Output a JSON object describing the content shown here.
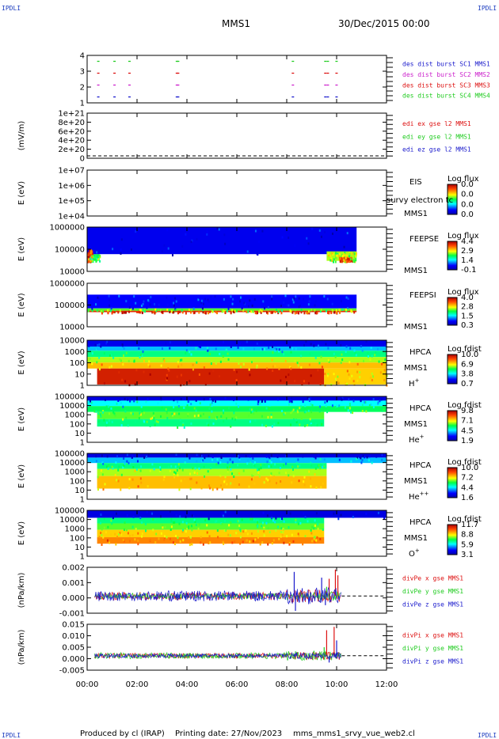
{
  "page": {
    "corner_tag": "IPDLI",
    "spacecraft": "MMS1",
    "date_time": "30/Dec/2015 00:00",
    "footer": {
      "produced_by": "Produced by cl (IRAP)",
      "printing_date": "Printing date: 27/Nov/2023",
      "filename": "mms_mms1_srvy_vue_web2.cl"
    },
    "overlap_text": "survy electron tc"
  },
  "colors": {
    "mms1": "#1a1acc",
    "mms2": "#cc22cc",
    "mms3": "#dd1111",
    "mms4": "#22cc22",
    "x": "#dd1111",
    "y": "#22cc22",
    "z": "#1a1acc"
  },
  "chart_data": [
    {
      "type": "scatter",
      "name": "burst",
      "ylim": [
        0.5,
        4.5
      ],
      "yticks": [
        "4",
        "3",
        "2",
        "1"
      ],
      "legend": [
        {
          "text": "des dist burst SC1 MMS1",
          "color": "#1a1acc"
        },
        {
          "text": "des dist burst SC2 MMS2",
          "color": "#cc22cc"
        },
        {
          "text": "des dist burst SC3 MMS3",
          "color": "#dd1111"
        },
        {
          "text": "des dist burst SC4 MMS4",
          "color": "#22cc22"
        }
      ],
      "series": [
        {
          "sc": 4,
          "color": "#22cc22",
          "x": [
            0.4,
            1.05,
            1.65,
            3.55,
            3.6,
            8.2,
            9.5,
            9.6,
            9.95
          ]
        },
        {
          "sc": 3,
          "color": "#dd1111",
          "x": [
            0.4,
            1.05,
            1.65,
            3.55,
            3.6,
            8.2,
            9.5,
            9.6,
            9.95
          ]
        },
        {
          "sc": 2,
          "color": "#cc22cc",
          "x": [
            0.4,
            1.05,
            1.65,
            3.55,
            3.6,
            8.2,
            9.5,
            9.6,
            9.95
          ]
        },
        {
          "sc": 1,
          "color": "#1a1acc",
          "x": [
            0.4,
            1.05,
            1.65,
            3.55,
            3.6,
            8.2,
            9.5,
            9.6,
            9.95
          ]
        }
      ]
    },
    {
      "type": "line",
      "name": "edi",
      "ylabel": "(mV/m)",
      "ylim": [
        0,
        1e+21
      ],
      "yticks": [
        "1e+21",
        "8e+20",
        "6e+20",
        "4e+20",
        "2e+20",
        "0"
      ],
      "legend": [
        {
          "text": "edi ex gse l2 MMS1",
          "color": "#dd1111"
        },
        {
          "text": "edi ey gse l2 MMS1",
          "color": "#22cc22"
        },
        {
          "text": "edi ez gse l2 MMS1",
          "color": "#1a1acc"
        }
      ],
      "series": [
        {
          "name": "edi ex gse l2 MMS1",
          "values": []
        },
        {
          "name": "edi ey gse l2 MMS1",
          "values": []
        },
        {
          "name": "edi ez gse l2 MMS1",
          "values": []
        }
      ]
    },
    {
      "type": "heatmap",
      "name": "eis",
      "ylabel": "E (eV)",
      "scale": "log",
      "ylim": [
        10000,
        10000000
      ],
      "yticks": [
        "1e+07",
        "1e+06",
        "1e+05",
        "1e+04"
      ],
      "instrument": "EIS",
      "sc_label": "MMS1",
      "colorbar": {
        "title": "Log flux",
        "labels": [
          "0.0",
          "0.0",
          "0.0",
          "0.0"
        ]
      },
      "bands": []
    },
    {
      "type": "heatmap",
      "name": "feeps-e",
      "ylabel": "E (eV)",
      "scale": "log",
      "ylim": [
        10000,
        1000000
      ],
      "yticks": [
        "1000000",
        "100000",
        "10000"
      ],
      "instrument": "FEEPSE",
      "sc_label": "MMS1",
      "colorbar": {
        "title": "Log flux",
        "labels": [
          "4.4",
          "2.9",
          "1.4",
          "-0.1"
        ]
      },
      "bands": [
        {
          "x": [
            0.0,
            0.2
          ],
          "e": [
            30000,
            100000
          ],
          "level": 0.85
        },
        {
          "x": [
            0.0,
            0.5
          ],
          "e": [
            30000,
            60000
          ],
          "level": 0.5
        },
        {
          "x": [
            0.0,
            10.8
          ],
          "e": [
            60000,
            1000000
          ],
          "level": 0.12
        },
        {
          "x": [
            9.6,
            10.8
          ],
          "e": [
            30000,
            80000
          ],
          "level": 0.6
        },
        {
          "x": [
            10.1,
            10.6
          ],
          "e": [
            30000,
            45000
          ],
          "level": 0.85
        }
      ]
    },
    {
      "type": "heatmap",
      "name": "feeps-i",
      "ylabel": "E (eV)",
      "scale": "log",
      "ylim": [
        10000,
        1000000
      ],
      "yticks": [
        "1000000",
        "100000",
        "10000"
      ],
      "instrument": "FEEPSI",
      "sc_label": "MMS1",
      "colorbar": {
        "title": "Log flux",
        "labels": [
          "4.0",
          "2.8",
          "1.5",
          "0.3"
        ]
      },
      "bands": [
        {
          "x": [
            0.0,
            10.8
          ],
          "e": [
            70000,
            300000
          ],
          "level": 0.15
        },
        {
          "x": [
            0.0,
            10.8
          ],
          "e": [
            55000,
            70000
          ],
          "level": 0.55
        },
        {
          "x": [
            0.0,
            10.8
          ],
          "e": [
            47000,
            55000
          ],
          "level": 0.9
        }
      ]
    },
    {
      "type": "heatmap",
      "name": "hpca-h",
      "ylabel": "E (eV)",
      "scale": "log",
      "ylim": [
        1,
        20000
      ],
      "yticks": [
        "10000",
        "1000",
        "100",
        "10",
        "1"
      ],
      "instrument": "HPCA",
      "sc_label": "MMS1",
      "species": "H+",
      "colorbar": {
        "title": "Log fdist",
        "labels": [
          "10.0",
          "6.9",
          "3.8",
          "0.7"
        ]
      },
      "bands": [
        {
          "x": [
            0.0,
            12.0
          ],
          "e": [
            5000,
            20000
          ],
          "level": 0.12
        },
        {
          "x": [
            0.0,
            12.0
          ],
          "e": [
            2000,
            5000
          ],
          "level": 0.3
        },
        {
          "x": [
            0.0,
            12.0
          ],
          "e": [
            500,
            2000
          ],
          "level": 0.45
        },
        {
          "x": [
            0.0,
            12.0
          ],
          "e": [
            150,
            500
          ],
          "level": 0.6
        },
        {
          "x": [
            0.0,
            12.0
          ],
          "e": [
            40,
            150
          ],
          "level": 0.72
        },
        {
          "x": [
            0.4,
            9.5
          ],
          "e": [
            1.2,
            40
          ],
          "level": 0.93
        },
        {
          "x": [
            9.5,
            12.0
          ],
          "e": [
            1.2,
            40
          ],
          "level": 0.7
        }
      ]
    },
    {
      "type": "heatmap",
      "name": "hpca-he",
      "ylabel": "E (eV)",
      "scale": "log",
      "ylim": [
        1,
        20000
      ],
      "yticks": [
        "100000",
        "10000",
        "1000",
        "100",
        "10",
        "1"
      ],
      "instrument": "HPCA",
      "sc_label": "MMS1",
      "species": "He+",
      "colorbar": {
        "title": "Log fdist",
        "labels": [
          "9.8",
          "7.1",
          "4.5",
          "1.9"
        ]
      },
      "bands": [
        {
          "x": [
            0.0,
            12.0
          ],
          "e": [
            8000,
            20000
          ],
          "level": 0.1
        },
        {
          "x": [
            0.0,
            12.0
          ],
          "e": [
            2500,
            8000
          ],
          "level": 0.35
        },
        {
          "x": [
            0.0,
            12.0
          ],
          "e": [
            700,
            2500
          ],
          "level": 0.48
        },
        {
          "x": [
            0.4,
            9.5
          ],
          "e": [
            150,
            700
          ],
          "level": 0.55
        },
        {
          "x": [
            0.4,
            9.5
          ],
          "e": [
            30,
            150
          ],
          "level": 0.45
        }
      ]
    },
    {
      "type": "heatmap",
      "name": "hpca-hepp",
      "ylabel": "E (eV)",
      "scale": "log",
      "ylim": [
        1,
        20000
      ],
      "yticks": [
        "100000",
        "10000",
        "1000",
        "100",
        "10",
        "1"
      ],
      "instrument": "HPCA",
      "sc_label": "MMS1",
      "species": "He++",
      "colorbar": {
        "title": "Log fdist",
        "labels": [
          "10.0",
          "7.2",
          "4.4",
          "1.6"
        ]
      },
      "bands": [
        {
          "x": [
            0.0,
            12.0
          ],
          "e": [
            8000,
            20000
          ],
          "level": 0.1
        },
        {
          "x": [
            0.0,
            12.0
          ],
          "e": [
            2500,
            8000
          ],
          "level": 0.3
        },
        {
          "x": [
            0.4,
            9.6
          ],
          "e": [
            700,
            2500
          ],
          "level": 0.45
        },
        {
          "x": [
            0.4,
            9.6
          ],
          "e": [
            150,
            700
          ],
          "level": 0.6
        },
        {
          "x": [
            0.4,
            9.6
          ],
          "e": [
            10,
            150
          ],
          "level": 0.72
        }
      ]
    },
    {
      "type": "heatmap",
      "name": "hpca-o",
      "ylabel": "E (eV)",
      "scale": "log",
      "ylim": [
        1,
        20000
      ],
      "yticks": [
        "100000",
        "10000",
        "1000",
        "100",
        "10",
        "1"
      ],
      "instrument": "HPCA",
      "sc_label": "MMS1",
      "species": "O+",
      "colorbar": {
        "title": "Log fdist",
        "labels": [
          "11.7",
          "8.8",
          "5.9",
          "3.1"
        ]
      },
      "bands": [
        {
          "x": [
            0.0,
            12.0
          ],
          "e": [
            4000,
            20000
          ],
          "level": 0.1
        },
        {
          "x": [
            0.4,
            9.5
          ],
          "e": [
            1200,
            4000
          ],
          "level": 0.45
        },
        {
          "x": [
            0.4,
            9.5
          ],
          "e": [
            300,
            1200
          ],
          "level": 0.55
        },
        {
          "x": [
            0.4,
            9.5
          ],
          "e": [
            60,
            300
          ],
          "level": 0.7
        },
        {
          "x": [
            0.4,
            9.5
          ],
          "e": [
            15,
            60
          ],
          "level": 0.78
        }
      ]
    },
    {
      "type": "line",
      "name": "divpe",
      "ylabel": "(nPa/km)",
      "ylim": [
        -0.0015,
        0.0025
      ],
      "yticks": [
        "0.002",
        "0.001",
        "0.000",
        "-0.001"
      ],
      "legend": [
        {
          "text": "divPe x gse MMS1",
          "color": "#dd1111"
        },
        {
          "text": "divPe y gse MMS1",
          "color": "#22cc22"
        },
        {
          "text": "divPe z gse MMS1",
          "color": "#1a1acc"
        }
      ],
      "series": [
        {
          "name": "divPe x gse MMS1",
          "spread": 0.00035,
          "spikes": [
            [
              9.7,
              0.0015
            ],
            [
              9.75,
              -0.0005
            ],
            [
              9.95,
              0.0023
            ],
            [
              10.05,
              0.0018
            ]
          ]
        },
        {
          "name": "divPe y gse MMS1",
          "spread": 0.00025,
          "spikes": [
            [
              9.6,
              0.0008
            ]
          ]
        },
        {
          "name": "divPe z gse MMS1",
          "spread": 0.00045,
          "spikes": [
            [
              8.3,
              0.0021
            ],
            [
              8.35,
              -0.0013
            ],
            [
              9.4,
              0.0016
            ],
            [
              9.55,
              -0.0008
            ]
          ]
        }
      ]
    },
    {
      "type": "line",
      "name": "divpi",
      "ylabel": "(nPa/km)",
      "ylim": [
        -0.0085,
        0.0185
      ],
      "yticks": [
        "0.015",
        "0.010",
        "0.005",
        "0.000",
        "-0.005"
      ],
      "legend": [
        {
          "text": "divPi x gse MMS1",
          "color": "#dd1111"
        },
        {
          "text": "divPi y gse MMS1",
          "color": "#22cc22"
        },
        {
          "text": "divPi z gse MMS1",
          "color": "#1a1acc"
        }
      ],
      "series": [
        {
          "name": "divPi x gse MMS1",
          "spread": 0.0015,
          "spikes": [
            [
              9.6,
              0.015
            ],
            [
              9.9,
              0.017
            ]
          ]
        },
        {
          "name": "divPi y gse MMS1",
          "spread": 0.0018,
          "spikes": [
            [
              9.5,
              0.005
            ]
          ]
        },
        {
          "name": "divPi z gse MMS1",
          "spread": 0.0012,
          "spikes": [
            [
              9.7,
              -0.004
            ],
            [
              10.0,
              0.009
            ]
          ]
        }
      ]
    }
  ],
  "time_axis": {
    "range": [
      0,
      12
    ],
    "labels": [
      "00:00",
      "02:00",
      "04:00",
      "06:00",
      "08:00",
      "10:00",
      "12:00"
    ]
  }
}
